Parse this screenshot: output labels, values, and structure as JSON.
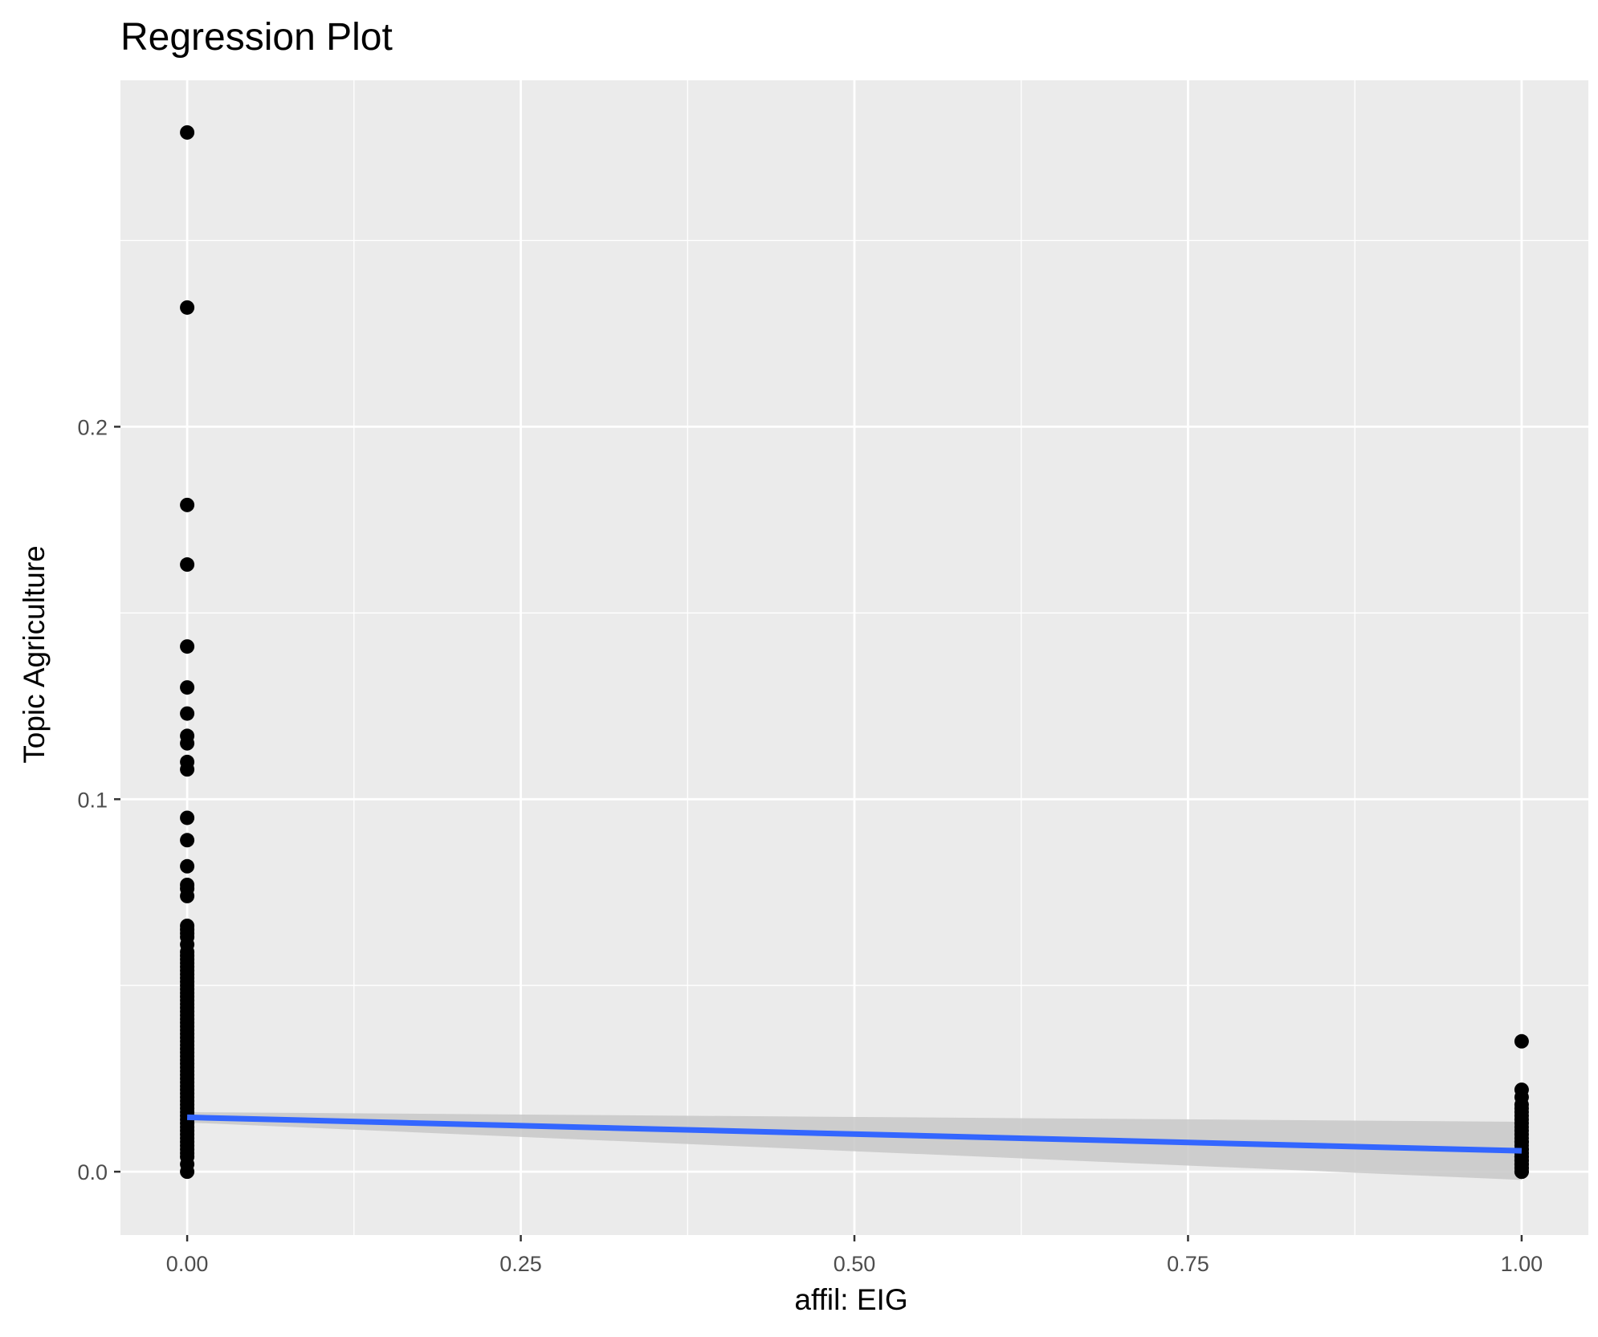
{
  "chart_data": {
    "type": "scatter",
    "title": "Regression Plot",
    "xlabel": "affil: EIG",
    "ylabel": "Topic Agriculture",
    "xlim": [
      -0.05,
      1.05
    ],
    "ylim": [
      -0.017,
      0.293
    ],
    "x_ticks": [
      0,
      0.25,
      0.5,
      0.75,
      1
    ],
    "x_tick_labels": [
      "0.00",
      "0.25",
      "0.50",
      "0.75",
      "1.00"
    ],
    "y_ticks": [
      0,
      0.1,
      0.2
    ],
    "y_tick_labels": [
      "0.0",
      "0.1",
      "0.2"
    ],
    "grid": true,
    "colors": {
      "panel": "#ebebeb",
      "grid": "#ffffff",
      "points": "#000000",
      "fit_line": "#3366ff",
      "confidence_band": "#c8c8c8"
    },
    "series": [
      {
        "x": [
          0,
          0,
          0,
          0,
          0,
          0,
          0,
          0,
          0,
          0,
          0,
          0,
          0,
          0,
          0,
          0,
          0,
          0,
          0,
          0,
          0,
          0,
          0,
          0,
          0,
          0,
          0,
          0,
          0,
          0,
          0,
          0,
          0,
          0,
          0,
          0,
          0,
          0,
          0,
          0,
          0,
          0,
          0,
          0,
          0,
          0,
          0,
          0,
          0,
          0,
          0,
          0,
          0,
          0,
          0,
          0,
          0,
          0,
          0,
          0,
          0,
          0,
          0,
          0,
          0,
          0,
          0,
          0,
          0,
          0,
          0,
          0,
          0,
          0,
          0,
          0,
          0,
          0,
          0,
          0,
          1,
          1,
          1,
          1,
          1,
          1,
          1,
          1,
          1,
          1,
          1,
          1,
          1,
          1,
          1,
          1,
          1,
          1,
          1,
          1,
          1,
          1,
          1,
          1,
          1,
          1,
          1,
          1,
          1,
          1
        ],
        "y": [
          0.279,
          0.232,
          0.179,
          0.163,
          0.141,
          0.13,
          0.123,
          0.117,
          0.115,
          0.11,
          0.108,
          0.095,
          0.089,
          0.082,
          0.077,
          0.076,
          0.074,
          0.066,
          0.065,
          0.064,
          0.063,
          0.061,
          0.059,
          0.058,
          0.057,
          0.056,
          0.055,
          0.054,
          0.053,
          0.052,
          0.051,
          0.05,
          0.049,
          0.048,
          0.047,
          0.046,
          0.045,
          0.044,
          0.043,
          0.042,
          0.041,
          0.04,
          0.039,
          0.038,
          0.037,
          0.036,
          0.035,
          0.034,
          0.033,
          0.032,
          0.031,
          0.03,
          0.029,
          0.028,
          0.027,
          0.026,
          0.025,
          0.024,
          0.023,
          0.022,
          0.021,
          0.02,
          0.019,
          0.018,
          0.017,
          0.016,
          0.015,
          0.014,
          0.013,
          0.012,
          0.011,
          0.01,
          0.009,
          0.008,
          0.007,
          0.006,
          0.005,
          0.004,
          0.002,
          0.0,
          0.035,
          0.022,
          0.02,
          0.018,
          0.017,
          0.016,
          0.015,
          0.014,
          0.013,
          0.012,
          0.011,
          0.01,
          0.009,
          0.008,
          0.007,
          0.006,
          0.005,
          0.004,
          0.003,
          0.002,
          0.001,
          0.0,
          0.008,
          0.006,
          0.004,
          0.003,
          0.002,
          0.001,
          0.0,
          0.005
        ]
      }
    ],
    "fit": {
      "method": "linear",
      "x": [
        0,
        1
      ],
      "y": [
        0.0146,
        0.0056
      ],
      "ci_lower": [
        0.0132,
        -0.0022
      ],
      "ci_upper": [
        0.016,
        0.0134
      ]
    }
  }
}
